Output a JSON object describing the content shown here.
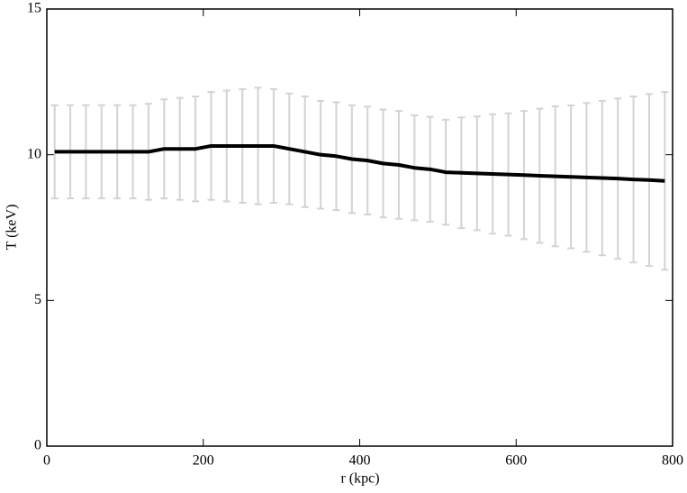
{
  "chart_data": {
    "type": "line",
    "xlabel": "r (kpc)",
    "ylabel": "T (keV)",
    "x": [
      10,
      30,
      50,
      70,
      90,
      110,
      130,
      150,
      170,
      190,
      210,
      230,
      250,
      270,
      290,
      310,
      330,
      350,
      370,
      390,
      410,
      430,
      450,
      470,
      490,
      510,
      530,
      550,
      570,
      590,
      610,
      630,
      650,
      670,
      690,
      710,
      730,
      750,
      770,
      790
    ],
    "series": [
      {
        "color": "#000000",
        "error_color": "#d3d3d3",
        "values": [
          10.1,
          10.1,
          10.1,
          10.1,
          10.1,
          10.1,
          10.1,
          10.2,
          10.2,
          10.2,
          10.3,
          10.3,
          10.3,
          10.3,
          10.3,
          10.2,
          10.1,
          10.0,
          9.95,
          9.85,
          9.8,
          9.7,
          9.65,
          9.55,
          9.5,
          9.4,
          9.38,
          9.36,
          9.34,
          9.32,
          9.3,
          9.28,
          9.26,
          9.24,
          9.22,
          9.2,
          9.18,
          9.15,
          9.13,
          9.1
        ],
        "errors": [
          1.6,
          1.6,
          1.6,
          1.6,
          1.6,
          1.6,
          1.65,
          1.7,
          1.75,
          1.8,
          1.85,
          1.9,
          1.95,
          2.0,
          1.95,
          1.9,
          1.9,
          1.85,
          1.85,
          1.85,
          1.85,
          1.85,
          1.85,
          1.8,
          1.8,
          1.8,
          1.9,
          1.95,
          2.05,
          2.1,
          2.2,
          2.3,
          2.4,
          2.45,
          2.55,
          2.65,
          2.75,
          2.85,
          2.95,
          3.05
        ]
      }
    ],
    "xlim": [
      0,
      800
    ],
    "xticks": [
      0,
      200,
      400,
      600,
      800
    ],
    "ylim": [
      0,
      15
    ],
    "yticks": [
      0,
      5,
      10,
      15
    ]
  }
}
